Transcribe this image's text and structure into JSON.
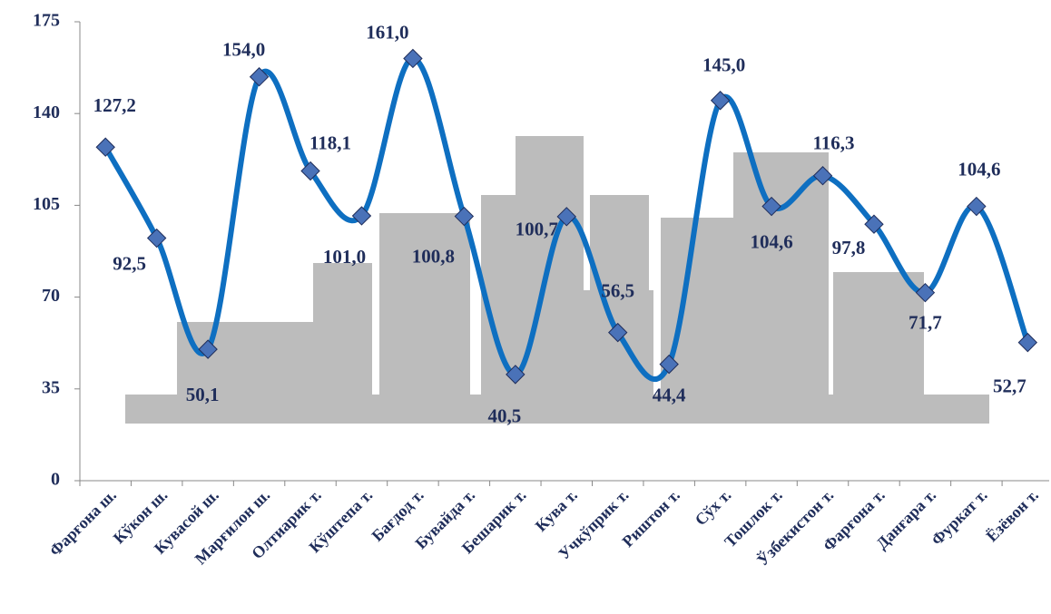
{
  "chart_data": {
    "type": "line",
    "categories": [
      "Фарғона ш.",
      "Кўкон ш.",
      "Кувасой ш.",
      "Марғилон ш.",
      "Олтиарик т.",
      "Кўштепа т.",
      "Бағдод т.",
      "Бувайда т.",
      "Бешарик т.",
      "Кува т.",
      "Учкўприк т.",
      "Риштон т.",
      "Сўх т.",
      "Тошлок т.",
      "Ўзбекистон т.",
      "Фарғона т.",
      "Данғара т.",
      "Фуркат т.",
      "Ёзёвон т."
    ],
    "values": [
      127.2,
      92.5,
      50.1,
      154.0,
      118.1,
      101.0,
      161.0,
      100.8,
      40.5,
      100.7,
      56.5,
      44.4,
      145.0,
      104.6,
      116.3,
      97.8,
      71.7,
      104.6,
      52.7
    ],
    "value_labels": [
      "127,2",
      "92,5",
      "50,1",
      "154,0",
      "118,1",
      "101,0",
      "161,0",
      "100,8",
      "40,5",
      "100,7",
      "56,5",
      "44,4",
      "145,0",
      "104,6",
      "116,3",
      "97,8",
      "71,7",
      "104,6",
      "52,7"
    ],
    "color": "#0e6fc1",
    "marker_color": "#4a72b8",
    "ylim": [
      0,
      175
    ],
    "yticks": [
      0,
      35,
      70,
      105,
      140,
      175
    ]
  }
}
